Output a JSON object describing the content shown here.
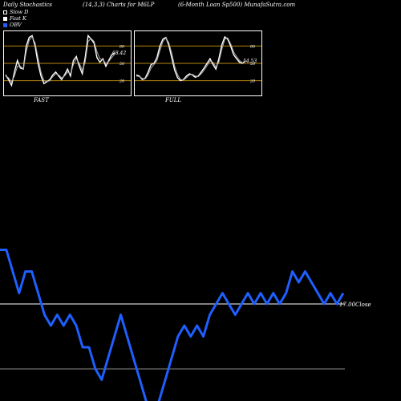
{
  "header": {
    "left": "Daily Stochastics",
    "middle": "(14,3,3) Charts for M6LP",
    "right": "(6-Month Loan Sp500) MunafaSutra.com"
  },
  "legend": [
    {
      "label": "Slow  D",
      "color": "#000000"
    },
    {
      "label": "Fast K",
      "color": "#ffffff"
    },
    {
      "label": "OBV",
      "color": "#1f5fff"
    }
  ],
  "chart_data": [
    {
      "type": "line",
      "title": "FAST",
      "ylim": [
        0,
        100
      ],
      "yticks": [
        20,
        50,
        80
      ],
      "reference_lines": [
        20,
        50,
        80
      ],
      "last_value_label": "68.42",
      "series": [
        {
          "values": [
            30,
            22,
            12,
            35,
            55,
            42,
            40,
            80,
            95,
            98,
            80,
            50,
            28,
            15,
            18,
            22,
            30,
            35,
            28,
            22,
            30,
            40,
            28,
            55,
            62,
            45,
            32,
            60,
            98,
            92,
            85,
            60,
            52,
            58,
            45,
            55,
            65,
            68
          ]
        },
        {
          "values": [
            28,
            25,
            18,
            28,
            45,
            45,
            40,
            70,
            90,
            96,
            85,
            60,
            35,
            20,
            18,
            20,
            27,
            32,
            30,
            25,
            28,
            35,
            32,
            48,
            58,
            50,
            38,
            52,
            88,
            93,
            88,
            70,
            58,
            56,
            50,
            53,
            60,
            66
          ]
        }
      ]
    },
    {
      "type": "line",
      "title": "FULL",
      "ylim": [
        0,
        100
      ],
      "yticks": [
        20,
        50,
        80
      ],
      "reference_lines": [
        20,
        50,
        80
      ],
      "last_value_label": "54.53",
      "series": [
        {
          "values": [
            30,
            28,
            22,
            24,
            35,
            48,
            50,
            60,
            80,
            92,
            95,
            82,
            60,
            38,
            25,
            20,
            22,
            28,
            32,
            30,
            26,
            28,
            35,
            42,
            50,
            58,
            48,
            40,
            58,
            82,
            96,
            92,
            80,
            65,
            58,
            52,
            50,
            54
          ]
        },
        {
          "values": [
            28,
            27,
            24,
            23,
            30,
            42,
            48,
            55,
            72,
            88,
            94,
            86,
            68,
            45,
            30,
            22,
            21,
            25,
            30,
            31,
            28,
            27,
            32,
            38,
            46,
            54,
            52,
            44,
            52,
            74,
            92,
            94,
            84,
            70,
            62,
            55,
            51,
            53
          ]
        }
      ]
    },
    {
      "type": "line",
      "title": "",
      "reference_lines": [
        17.0,
        11.0
      ],
      "reference_labels": [
        "17.00",
        "Close"
      ],
      "series": [
        {
          "name": "OBV",
          "values": [
            22,
            22,
            20,
            18,
            20,
            20,
            18,
            16,
            15,
            16,
            15,
            16,
            15,
            13,
            13,
            11,
            10,
            12,
            14,
            16,
            14,
            12,
            10,
            8,
            7,
            8,
            10,
            12,
            14,
            15,
            14,
            15,
            14,
            16,
            17,
            18,
            17,
            16,
            17,
            18,
            17,
            18,
            17,
            18,
            17,
            18,
            20,
            19,
            20,
            19,
            18,
            17,
            18,
            17,
            18
          ]
        }
      ]
    }
  ]
}
